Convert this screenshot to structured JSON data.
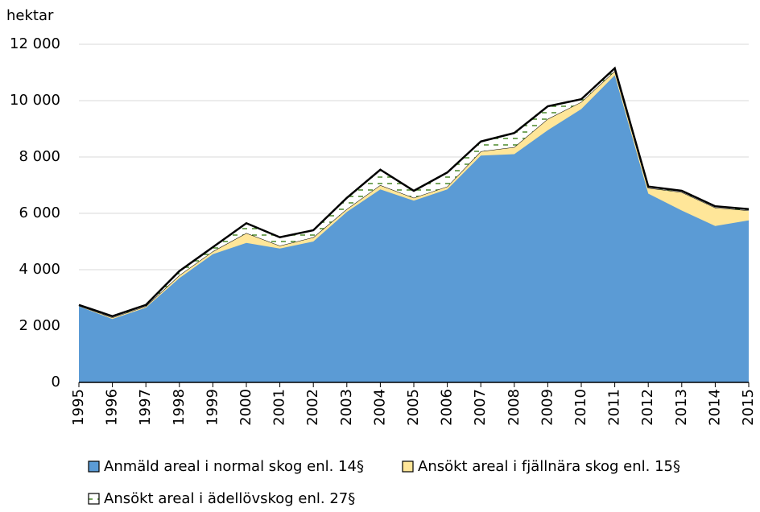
{
  "chart_data": {
    "type": "stacked_area",
    "y_label": "hektar",
    "categories": [
      "1995",
      "1996",
      "1997",
      "1998",
      "1999",
      "2000",
      "2001",
      "2002",
      "2003",
      "2004",
      "2005",
      "2006",
      "2007",
      "2008",
      "2009",
      "2010",
      "2011",
      "2012",
      "2013",
      "2014",
      "2015"
    ],
    "series": [
      {
        "name": "Anmäld areal i normal skog enl. 14§",
        "color": "#5b9bd5",
        "values": [
          2700,
          2250,
          2650,
          3700,
          4550,
          4950,
          4750,
          5000,
          6050,
          6850,
          6450,
          6850,
          8050,
          8100,
          8950,
          9700,
          10900,
          6700,
          6100,
          5550,
          5750
        ]
      },
      {
        "name": "Ansökt areal i fjällnära skog enl. 15§",
        "color": "#ffe699",
        "values": [
          20,
          50,
          50,
          100,
          100,
          350,
          100,
          150,
          100,
          150,
          100,
          100,
          150,
          250,
          400,
          250,
          150,
          200,
          650,
          650,
          350
        ]
      },
      {
        "name": "Ansökt areal i ädellövskog enl. 27§",
        "color": "#ffffff",
        "values": [
          30,
          50,
          50,
          150,
          150,
          350,
          300,
          250,
          400,
          550,
          250,
          500,
          350,
          500,
          450,
          100,
          100,
          50,
          50,
          50,
          50
        ]
      }
    ],
    "ylim": [
      0,
      12000
    ],
    "yticks": [
      0,
      {
        "value": 2000,
        "label": "2 000"
      },
      {
        "value": 4000,
        "label": "4 000"
      },
      {
        "value": 6000,
        "label": "6 000"
      },
      {
        "value": 8000,
        "label": "8 000"
      },
      {
        "value": 10000,
        "label": "10 000"
      },
      {
        "value": 12000,
        "label": "12 000"
      }
    ],
    "grid": true
  }
}
